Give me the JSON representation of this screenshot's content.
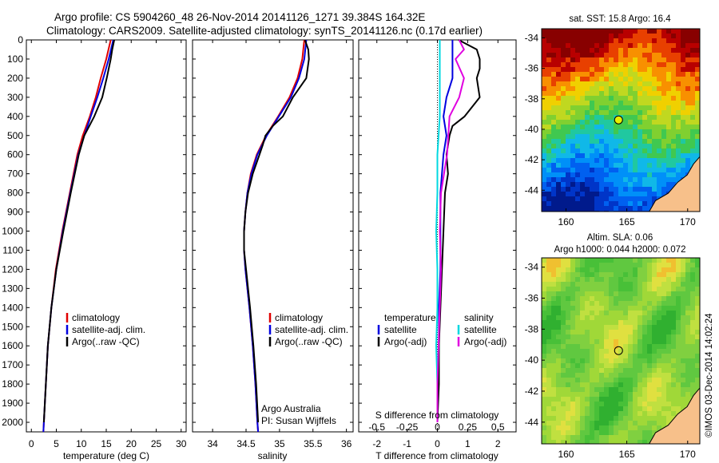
{
  "header": {
    "line1": "Argo profile: CS 5904260_48 26-Nov-2014 20141126_1271 39.384S 164.32E",
    "line2": "Climatology: CARS2009. Satellite-adjusted climatology: synTS_20141126.nc (0.17d earlier)"
  },
  "colors": {
    "climatology": "#e00000",
    "satellite": "#0000e0",
    "argo": "#000000",
    "sat_salinity": "#00d8e0",
    "argo_adj_salinity": "#e000e0",
    "land": "#f7c08a"
  },
  "chart_data": [
    {
      "type": "line",
      "xlabel": "temperature (deg C)",
      "ylabel": "",
      "xlim": [
        -1,
        31
      ],
      "ylim": [
        2050,
        0
      ],
      "x_ticks": [
        0,
        5,
        10,
        15,
        20,
        25,
        30
      ],
      "y_ticks": [
        0,
        100,
        200,
        300,
        400,
        500,
        600,
        700,
        800,
        900,
        1000,
        1100,
        1200,
        1300,
        1400,
        1500,
        1600,
        1700,
        1800,
        1900,
        2000
      ],
      "legend_position": "left-middle",
      "legend": [
        "climatology",
        "satellite-adj. clim.",
        "Argo(..raw -QC)"
      ],
      "series": [
        {
          "name": "climatology",
          "y": [
            0,
            100,
            200,
            300,
            400,
            500,
            600,
            800,
            1000,
            1200,
            1400,
            1600,
            1800,
            2000,
            2050
          ],
          "x": [
            15.9,
            15.0,
            13.9,
            12.9,
            11.7,
            10.3,
            9.2,
            7.7,
            6.2,
            4.9,
            4.0,
            3.3,
            2.9,
            2.5,
            2.4
          ]
        },
        {
          "name": "satellite-adj. clim.",
          "y": [
            0,
            100,
            200,
            300,
            400,
            500,
            600,
            800,
            1000,
            1200,
            1400,
            1600,
            1800,
            2000,
            2050
          ],
          "x": [
            16.4,
            15.5,
            14.4,
            13.2,
            11.9,
            10.6,
            9.4,
            7.8,
            6.3,
            5.0,
            4.0,
            3.3,
            2.9,
            2.5,
            2.4
          ]
        },
        {
          "name": "Argo(..raw -QC)",
          "y": [
            0,
            50,
            100,
            200,
            300,
            400,
            450,
            500,
            600,
            800,
            1000,
            1200,
            1400,
            1600,
            1800,
            2000
          ],
          "x": [
            16.6,
            16.2,
            15.9,
            15.1,
            14.2,
            12.6,
            11.6,
            10.6,
            9.5,
            7.9,
            6.4,
            5.0,
            4.0,
            3.3,
            2.9,
            2.5
          ]
        }
      ]
    },
    {
      "type": "line",
      "xlabel": "salinity",
      "xlim": [
        33.7,
        36.1
      ],
      "ylim": [
        2050,
        0
      ],
      "x_ticks": [
        34,
        34.5,
        35,
        35.5,
        36
      ],
      "legend_position": "right-middle",
      "legend": [
        "climatology",
        "satellite-adj. clim.",
        "Argo(..raw -QC)"
      ],
      "annotation": [
        "Argo Australia",
        "PI: Susan Wijffels"
      ],
      "series": [
        {
          "name": "climatology",
          "y": [
            0,
            100,
            200,
            300,
            400,
            500,
            600,
            700,
            800,
            900,
            1000,
            1100,
            1200,
            1400,
            1600,
            1800,
            2000,
            2050
          ],
          "x": [
            35.37,
            35.34,
            35.27,
            35.15,
            34.98,
            34.8,
            34.66,
            34.57,
            34.52,
            34.49,
            34.47,
            34.47,
            34.49,
            34.55,
            34.6,
            34.64,
            34.67,
            34.68
          ]
        },
        {
          "name": "satellite-adj. clim.",
          "y": [
            0,
            100,
            200,
            300,
            400,
            500,
            600,
            700,
            800,
            900,
            1000,
            1100,
            1200,
            1400,
            1600,
            1800,
            2000,
            2050
          ],
          "x": [
            35.4,
            35.37,
            35.29,
            35.17,
            34.99,
            34.81,
            34.67,
            34.58,
            34.52,
            34.49,
            34.47,
            34.47,
            34.49,
            34.55,
            34.6,
            34.64,
            34.67,
            34.68
          ]
        },
        {
          "name": "Argo(..raw -QC)",
          "y": [
            0,
            50,
            100,
            200,
            300,
            400,
            450,
            500,
            550,
            600,
            700,
            800,
            900,
            1000,
            1100,
            1200,
            1400,
            1600,
            1800,
            2000
          ],
          "x": [
            35.38,
            35.43,
            35.44,
            35.4,
            35.2,
            35.05,
            34.9,
            34.79,
            34.75,
            34.7,
            34.6,
            34.53,
            34.49,
            34.47,
            34.47,
            34.5,
            34.56,
            34.61,
            34.65,
            34.68
          ]
        }
      ]
    },
    {
      "type": "line",
      "xlabel": "T difference from climatology",
      "xlabel_top": "S difference from climatology",
      "xlim": [
        -2.6,
        2.6
      ],
      "ylim": [
        2050,
        0
      ],
      "x_ticks": [
        -2,
        -1,
        0,
        1,
        2
      ],
      "s_ticks": [
        -0.5,
        -0.25,
        0,
        0.25,
        0.5
      ],
      "legend_position": "center",
      "legend_left_title": "temperature",
      "legend_right_title": "salinity",
      "legend": [
        "satellite",
        "Argo(-adj)",
        "satellite",
        "Argo(-adj)"
      ],
      "series": [
        {
          "name": "satellite",
          "y": [
            0,
            100,
            200,
            300,
            400,
            500,
            600,
            800,
            1000,
            1200,
            1400,
            1600,
            1800,
            2000
          ],
          "x": [
            0.5,
            0.5,
            0.5,
            0.3,
            0.2,
            0.3,
            0.2,
            0.1,
            0.1,
            0.1,
            0.05,
            0.05,
            0.02,
            0.0
          ]
        },
        {
          "name": "Argo(-adj)",
          "y": [
            0,
            50,
            100,
            150,
            200,
            300,
            400,
            450,
            500,
            600,
            700,
            800,
            1000,
            1200,
            1400,
            1600,
            1800,
            2000
          ],
          "x": [
            0.7,
            1.3,
            1.4,
            1.4,
            1.3,
            1.4,
            0.9,
            0.5,
            0.4,
            0.3,
            0.35,
            0.25,
            0.2,
            0.15,
            0.1,
            0.05,
            0.05,
            0.0
          ]
        },
        {
          "name": "satellite",
          "y": [
            0,
            200,
            400,
            600,
            800,
            1000,
            1200,
            1400,
            1600,
            1800,
            2000
          ],
          "x": [
            0.02,
            0.02,
            0.02,
            0.0,
            0.0,
            -0.01,
            0.0,
            0.0,
            -0.01,
            0.0,
            0.0
          ]
        },
        {
          "name": "Argo(-adj)",
          "y": [
            0,
            50,
            100,
            200,
            300,
            400,
            600,
            800,
            1000,
            1200,
            1400,
            1600,
            1800,
            2000
          ],
          "x": [
            0.18,
            0.22,
            0.15,
            0.22,
            0.18,
            0.1,
            0.08,
            0.03,
            0.02,
            0.03,
            0.02,
            0.01,
            0.0,
            0.0
          ]
        }
      ]
    }
  ],
  "map_sst": {
    "title": "sat. SST: 15.8 Argo: 16.4",
    "x_ticks": [
      "160",
      "165",
      "170"
    ],
    "y_ticks": [
      "-34",
      "-36",
      "-38",
      "-40",
      "-42",
      "-44"
    ]
  },
  "map_sla": {
    "title1": "Altim. SLA: 0.06",
    "title2": "Argo h1000: 0.044 h2000: 0.072",
    "x_ticks": [
      "160",
      "165",
      "170"
    ],
    "y_ticks": [
      "-34",
      "-36",
      "-38",
      "-40",
      "-42",
      "-44"
    ],
    "profile_lon": 164.32,
    "profile_lat": -39.384
  },
  "stamp": "©IMOS 03-Dec-2014 14:02:24"
}
